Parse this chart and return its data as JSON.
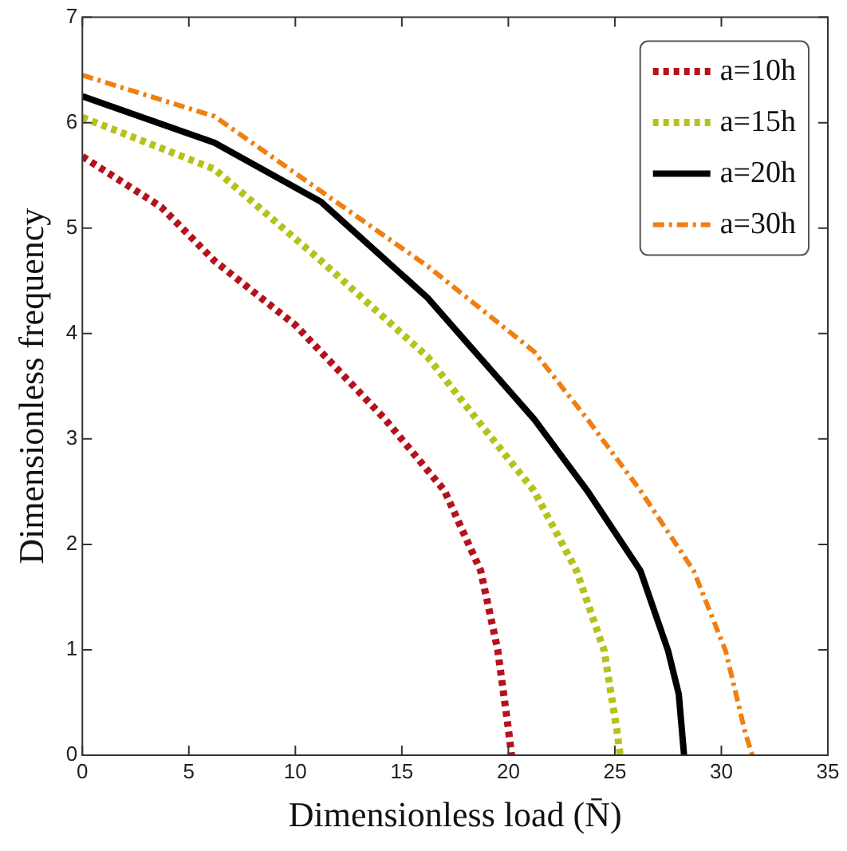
{
  "chart_data": {
    "type": "line",
    "xlabel": "Dimensionless load (N̄)",
    "ylabel": "Dimensionless frequency",
    "xlim": [
      0,
      35
    ],
    "xticks": [
      0,
      5,
      10,
      15,
      20,
      25,
      30,
      35
    ],
    "ylim": [
      0,
      7
    ],
    "yticks": [
      0,
      1,
      2,
      3,
      4,
      5,
      6,
      7
    ],
    "grid": false,
    "legend": "top right",
    "marker": "none",
    "series": [
      {
        "name": "a=10h",
        "color": "#b5121b",
        "line_style": "dotted",
        "x": [
          0,
          3.7,
          6.2,
          10,
          14.2,
          17,
          18.7,
          19.5,
          20,
          20.15
        ],
        "values": [
          5.68,
          5.2,
          4.69,
          4.08,
          3.19,
          2.51,
          1.75,
          1.0,
          0.25,
          0
        ]
      },
      {
        "name": "a=15h",
        "color": "#b5c21a",
        "line_style": "dotted",
        "x": [
          0,
          6.2,
          11.2,
          16.2,
          18.5,
          21.2,
          23.2,
          24.5,
          25.1,
          25.25
        ],
        "values": [
          6.05,
          5.56,
          4.69,
          3.78,
          3.19,
          2.51,
          1.75,
          0.99,
          0.23,
          0
        ]
      },
      {
        "name": "a=20h",
        "color": "#000000",
        "line_style": "solid",
        "x": [
          0,
          6.2,
          11.2,
          16.2,
          21.2,
          23.7,
          26.2,
          27.5,
          28,
          28.25
        ],
        "values": [
          6.25,
          5.81,
          5.25,
          4.34,
          3.19,
          2.51,
          1.75,
          0.99,
          0.58,
          0
        ]
      },
      {
        "name": "a=30h",
        "color": "#f07f12",
        "line_style": "dashed",
        "x": [
          0,
          6.2,
          11.2,
          16.2,
          21.2,
          23.7,
          26.2,
          28.7,
          30.2,
          31.1,
          31.45
        ],
        "values": [
          6.45,
          6.06,
          5.35,
          4.64,
          3.83,
          3.19,
          2.51,
          1.75,
          0.99,
          0.23,
          0
        ]
      }
    ]
  }
}
